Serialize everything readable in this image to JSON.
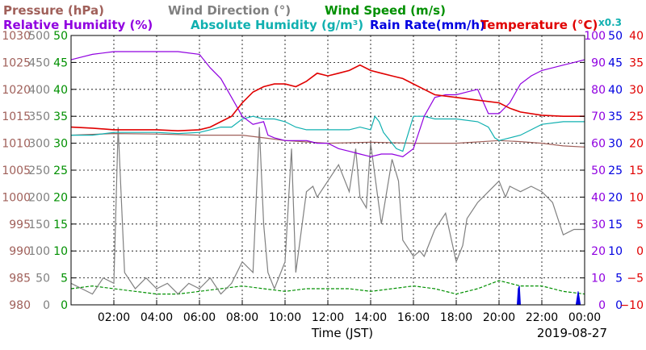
{
  "chart_data": {
    "type": "line",
    "legend": {
      "row1": [
        {
          "name": "Pressure (hPa)",
          "color": "#a0605a"
        },
        {
          "name": "Wind Direction (°)",
          "color": "#808080"
        },
        {
          "name": "Wind Speed (m/s)",
          "color": "#009000"
        }
      ],
      "row2": [
        {
          "name": "Relative Humidity (%)",
          "color": "#9000e0"
        },
        {
          "name": "Absolute Humidity (g/m³)",
          "color": "#10b0b0"
        },
        {
          "name": "Rain Rate(mm/h)",
          "color": "#0000e0"
        },
        {
          "name": "Temperature (°C)",
          "color": "#e00000"
        }
      ],
      "multiplier": "x0.3"
    },
    "xlabel": "Time (JST)",
    "date": "2019-08-27",
    "x_ticks": [
      "02:00",
      "04:00",
      "06:00",
      "08:00",
      "10:00",
      "12:00",
      "14:00",
      "16:00",
      "18:00",
      "20:00",
      "22:00",
      "00:00"
    ],
    "xlim": [
      0,
      24
    ],
    "axes": {
      "pressure": {
        "color": "#a0605a",
        "ticks": [
          "980",
          "985",
          "990",
          "995",
          "1000",
          "1005",
          "1010",
          "1015",
          "1020",
          "1025",
          "1030"
        ],
        "ylim": [
          980,
          1030
        ]
      },
      "wind_direction": {
        "color": "#808080",
        "ticks": [
          "0",
          "50",
          "100",
          "150",
          "200",
          "250",
          "300",
          "350",
          "400",
          "450",
          "500"
        ],
        "ylim": [
          0,
          500
        ]
      },
      "wind_speed": {
        "color": "#009000",
        "ticks": [
          "0",
          "5",
          "10",
          "15",
          "20",
          "25",
          "30",
          "35",
          "40",
          "45",
          "50"
        ],
        "ylim": [
          0,
          50
        ]
      },
      "humidity": {
        "color": "#9000e0",
        "ticks": [
          "0",
          "10",
          "20",
          "30",
          "40",
          "50",
          "60",
          "70",
          "80",
          "90",
          "100"
        ],
        "ylim": [
          0,
          100
        ]
      },
      "rain_abs": {
        "color": "#0000e0",
        "ticks": [
          "0",
          "5",
          "10",
          "15",
          "20",
          "25",
          "30",
          "35",
          "40",
          "45",
          "50"
        ],
        "ylim": [
          0,
          50
        ]
      },
      "temperature": {
        "color": "#e00000",
        "ticks": [
          "−10",
          "−5",
          "0",
          "5",
          "10",
          "15",
          "20",
          "25",
          "30",
          "35",
          "40"
        ],
        "ylim": [
          -10,
          40
        ]
      }
    },
    "series": [
      {
        "name": "Temperature (°C)",
        "axis": "temperature",
        "color": "#e00000",
        "x": [
          0,
          1,
          2,
          3,
          4,
          5,
          6,
          6.5,
          7,
          7.5,
          8,
          8.5,
          9,
          9.5,
          10,
          10.5,
          11,
          11.5,
          12,
          12.5,
          13,
          13.5,
          14,
          14.5,
          15,
          15.5,
          16,
          16.5,
          17,
          18,
          19,
          20,
          20.5,
          21,
          22,
          23,
          24
        ],
        "y": [
          23,
          22.8,
          22.5,
          22.5,
          22.5,
          22.3,
          22.5,
          23,
          24,
          25,
          27.5,
          29.5,
          30.5,
          31,
          31,
          30.5,
          31.5,
          33,
          32.5,
          33,
          33.5,
          34.5,
          33.5,
          33,
          32.5,
          32,
          31,
          30,
          29,
          28.5,
          28,
          27.5,
          26.5,
          25.8,
          25.2,
          25,
          25
        ]
      },
      {
        "name": "Relative Humidity (%)",
        "axis": "humidity",
        "color": "#9000e0",
        "x": [
          0,
          0.5,
          1,
          2,
          3,
          4,
          5,
          6,
          6.5,
          7,
          7.5,
          8,
          8.5,
          9,
          9.2,
          9.5,
          10,
          10.5,
          11,
          11.5,
          12,
          12.5,
          13,
          13.5,
          14,
          14.5,
          15,
          15.5,
          16,
          16.5,
          17,
          17.5,
          18,
          18.5,
          19,
          19.5,
          20,
          20.5,
          21,
          21.5,
          22,
          22.5,
          23,
          23.5,
          24
        ],
        "y": [
          91,
          92,
          93,
          94,
          94,
          94,
          94,
          93,
          88,
          84,
          77,
          70,
          67,
          68,
          63,
          62,
          61,
          61,
          61,
          60,
          60,
          58,
          57,
          56,
          55,
          56,
          56,
          55,
          58,
          70,
          77,
          78,
          78,
          79,
          80,
          71,
          71,
          75,
          82,
          85,
          87,
          88,
          89,
          90,
          91
        ]
      },
      {
        "name": "Absolute Humidity (g/m³)",
        "axis": "rain_abs",
        "color": "#10b0b0",
        "x": [
          0,
          1,
          2,
          3,
          4,
          5,
          6,
          6.5,
          7,
          7.5,
          8,
          8.5,
          9,
          9.5,
          10,
          10.5,
          11,
          12,
          13,
          13.5,
          14,
          14.2,
          14.4,
          14.6,
          15,
          15.2,
          15.5,
          16,
          16.5,
          17,
          18,
          19,
          19.5,
          19.8,
          20,
          20.5,
          21,
          21.5,
          22,
          23,
          24
        ],
        "y": [
          31.5,
          31.5,
          32,
          32,
          32,
          31.8,
          32,
          32.5,
          33,
          33,
          34.5,
          35,
          34.5,
          34.5,
          34,
          33,
          32.5,
          32.5,
          32.5,
          33,
          32.5,
          35,
          34,
          32,
          30,
          29,
          28.5,
          35,
          35,
          34.5,
          34.5,
          34,
          33,
          31,
          30.5,
          31,
          31.5,
          32.5,
          33.5,
          34,
          34
        ]
      },
      {
        "name": "Pressure (hPa)",
        "axis": "pressure",
        "color": "#a0605a",
        "x": [
          0,
          2,
          4,
          6,
          8,
          9,
          10,
          12,
          14,
          16,
          18,
          20,
          21,
          22,
          23,
          24
        ],
        "y": [
          1011.5,
          1011.8,
          1011.7,
          1011.5,
          1011.5,
          1011,
          1010.5,
          1010,
          1010.2,
          1010,
          1010,
          1010.5,
          1010.3,
          1010,
          1009.5,
          1009.3
        ]
      },
      {
        "name": "Wind Direction (°)",
        "axis": "wind_direction",
        "color": "#808080",
        "x": [
          0,
          0.5,
          1,
          1.5,
          2,
          2.2,
          2.5,
          3,
          3.5,
          4,
          4.5,
          5,
          5.5,
          6,
          6.5,
          7,
          7.5,
          8,
          8.5,
          8.8,
          9,
          9.2,
          9.5,
          10,
          10.3,
          10.5,
          11,
          11.3,
          11.5,
          12,
          12.5,
          13,
          13.3,
          13.5,
          13.8,
          14,
          14.3,
          14.5,
          15,
          15.3,
          15.5,
          16,
          16.3,
          16.5,
          17,
          17.5,
          18,
          18.3,
          18.5,
          19,
          19.5,
          20,
          20.3,
          20.5,
          21,
          21.5,
          22,
          22.5,
          23,
          23.5,
          24
        ],
        "y": [
          40,
          30,
          20,
          50,
          40,
          330,
          60,
          30,
          50,
          30,
          40,
          20,
          40,
          30,
          50,
          20,
          40,
          80,
          60,
          330,
          150,
          60,
          30,
          80,
          290,
          60,
          210,
          220,
          200,
          230,
          260,
          210,
          290,
          200,
          180,
          300,
          210,
          150,
          270,
          230,
          120,
          90,
          100,
          90,
          140,
          170,
          80,
          110,
          160,
          190,
          210,
          230,
          200,
          220,
          210,
          220,
          210,
          190,
          130,
          140,
          140
        ]
      },
      {
        "name": "Wind Speed (m/s)",
        "axis": "wind_speed",
        "color": "#009000",
        "x": [
          0,
          1,
          2,
          3,
          4,
          5,
          6,
          7,
          8,
          9,
          10,
          11,
          12,
          13,
          14,
          15,
          16,
          17,
          18,
          19,
          20,
          21,
          22,
          23,
          24
        ],
        "y": [
          3,
          3.5,
          3,
          2.5,
          2,
          2,
          2.5,
          3,
          3.5,
          3,
          2.5,
          3,
          3,
          3,
          2.5,
          3,
          3.5,
          3,
          2,
          3,
          4.5,
          3.5,
          3.5,
          2.5,
          2
        ]
      },
      {
        "name": "Rain Rate(mm/h)",
        "axis": "rain_abs",
        "color": "#0000e0",
        "x": [
          0,
          20.85,
          20.9,
          20.95,
          21,
          23.6,
          23.7,
          23.8,
          24
        ],
        "y": [
          0,
          0,
          3,
          3.5,
          0,
          0,
          2.5,
          0,
          0
        ]
      }
    ]
  }
}
